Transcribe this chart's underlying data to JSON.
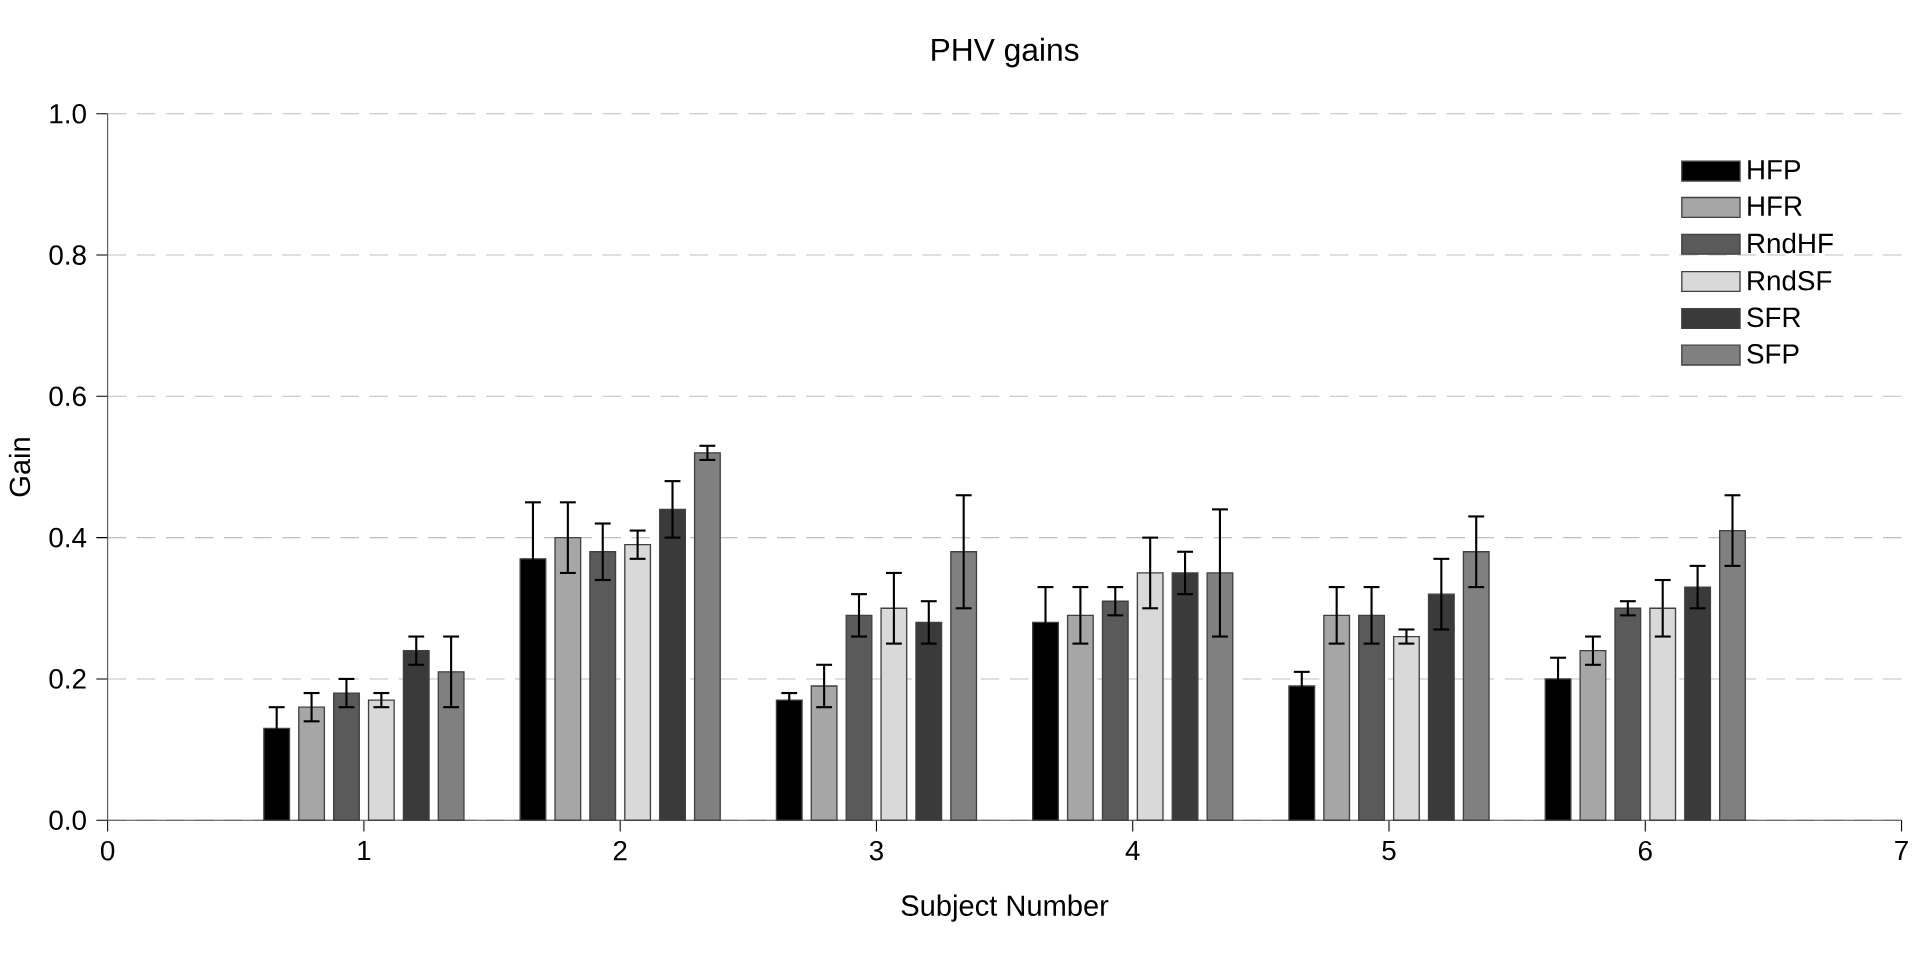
{
  "chart_data": {
    "type": "bar",
    "title": "PHV gains",
    "xlabel": "Subject Number",
    "ylabel": "Gain",
    "x": [
      1,
      2,
      3,
      4,
      5,
      6
    ],
    "xlim": [
      0,
      7
    ],
    "xticks": [
      0,
      1,
      2,
      3,
      4,
      5,
      6,
      7
    ],
    "ylim": [
      0,
      1.0
    ],
    "yticks": [
      {
        "value": 0,
        "label": "0.0"
      },
      0.2,
      0.4,
      0.6,
      0.8,
      {
        "value": 1.0,
        "label": "1.0"
      }
    ],
    "grid": "y",
    "legend": "top right",
    "series": [
      {
        "name": "HFP",
        "color": "#000000",
        "values": [
          0.13,
          0.37,
          0.17,
          0.28,
          0.19,
          0.2
        ],
        "errors": [
          0.03,
          0.08,
          0.01,
          0.05,
          0.02,
          0.03
        ]
      },
      {
        "name": "HFR",
        "color": "#a6a6a6",
        "values": [
          0.16,
          0.4,
          0.19,
          0.29,
          0.29,
          0.24
        ],
        "errors": [
          0.02,
          0.05,
          0.03,
          0.04,
          0.04,
          0.02
        ]
      },
      {
        "name": "RndHF",
        "color": "#5a5a5a",
        "values": [
          0.18,
          0.38,
          0.29,
          0.31,
          0.29,
          0.3
        ],
        "errors": [
          0.02,
          0.04,
          0.03,
          0.02,
          0.04,
          0.01
        ]
      },
      {
        "name": "RndSF",
        "color": "#d9d9d9",
        "values": [
          0.17,
          0.39,
          0.3,
          0.35,
          0.26,
          0.3
        ],
        "errors": [
          0.01,
          0.02,
          0.05,
          0.05,
          0.01,
          0.04
        ]
      },
      {
        "name": "SFR",
        "color": "#3a3a3a",
        "values": [
          0.24,
          0.44,
          0.28,
          0.35,
          0.32,
          0.33
        ],
        "errors": [
          0.02,
          0.04,
          0.03,
          0.03,
          0.05,
          0.03
        ]
      },
      {
        "name": "SFP",
        "color": "#808080",
        "values": [
          0.21,
          0.52,
          0.38,
          0.35,
          0.38,
          0.41
        ],
        "errors": [
          0.05,
          0.01,
          0.08,
          0.09,
          0.05,
          0.05
        ]
      }
    ]
  }
}
